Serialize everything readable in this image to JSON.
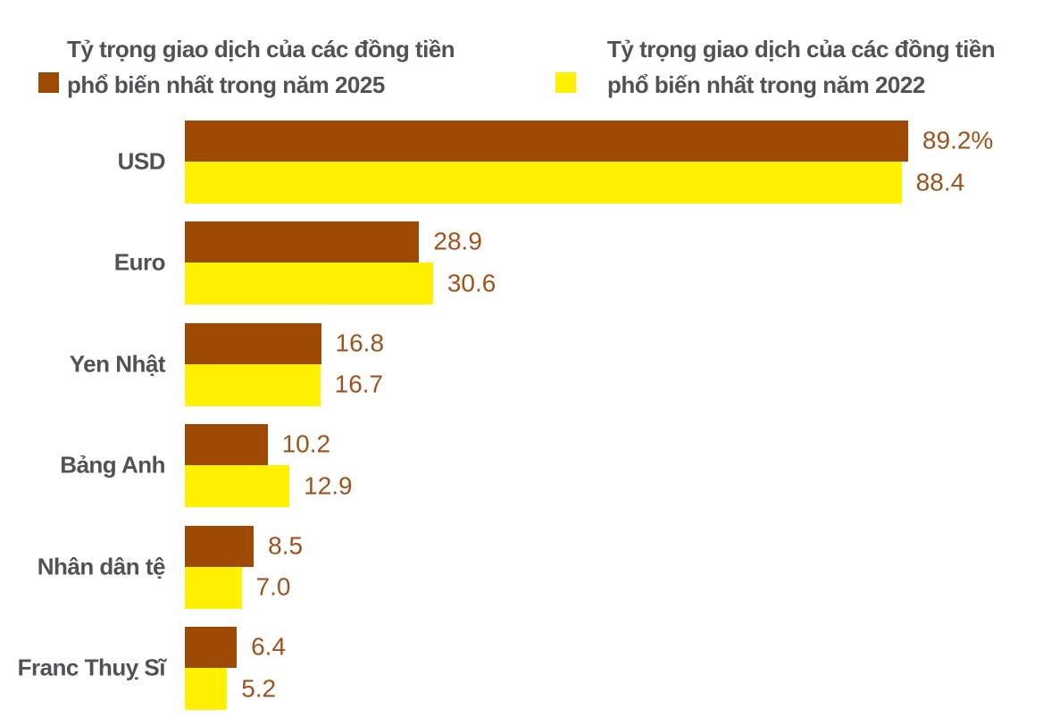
{
  "legend": {
    "items": [
      {
        "key": "2025",
        "line1": "Tỷ trọng giao dịch của các đồng tiền",
        "line2": "phổ biến nhất trong năm 2025",
        "color": "#9E4A05"
      },
      {
        "key": "2022",
        "line1": "Tỷ trọng giao dịch của các đồng tiền",
        "line2": "phổ biến nhất trong năm 2022",
        "color": "#FFF100"
      }
    ]
  },
  "chart_data": {
    "type": "bar",
    "orientation": "horizontal",
    "title": "",
    "xlabel": "",
    "ylabel": "",
    "xlim": [
      0,
      100
    ],
    "grid": false,
    "legend_position": "top",
    "categories": [
      "USD",
      "Euro",
      "Yen Nhật",
      "Bảng Anh",
      "Nhân dân tệ",
      "Franc Thuỵ Sĩ"
    ],
    "series": [
      {
        "name": "Tỷ trọng giao dịch của các đồng tiền phổ biến nhất trong năm 2025",
        "color": "#9E4A05",
        "values": [
          89.2,
          28.9,
          16.8,
          10.2,
          8.5,
          6.4
        ],
        "value_labels": [
          "89.2%",
          "28.9",
          "16.8",
          "10.2",
          "8.5",
          "6.4"
        ]
      },
      {
        "name": "Tỷ trọng giao dịch của các đồng tiền phổ biến nhất trong năm 2022",
        "color": "#FFF100",
        "values": [
          88.4,
          30.6,
          16.7,
          12.9,
          7.0,
          5.2
        ],
        "value_labels": [
          "88.4",
          "30.6",
          "16.7",
          "12.9",
          "7.0",
          "5.2"
        ]
      }
    ],
    "value_label_color": "#A0521C",
    "category_label_color": "#515257"
  }
}
